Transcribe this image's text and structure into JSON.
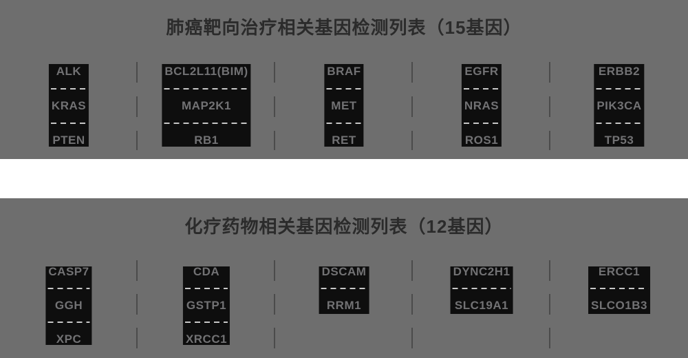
{
  "colors": {
    "page_bg": "#ffffff",
    "panel_bg": "#6e6e6e",
    "block_bg": "#0e0e0e",
    "gene_text": "#727274",
    "title_text": "#2b2b2b",
    "row_divider_dash": "#c8c8c8",
    "column_divider_dash": "#4b4b4b"
  },
  "panels": [
    {
      "title": "肺癌靶向治疗相关基因检测列表（15基因）",
      "gene_count": 15,
      "columns": [
        {
          "genes": [
            "ALK",
            "KRAS",
            "PTEN"
          ]
        },
        {
          "genes": [
            "BCL2L11(BIM)",
            "MAP2K1",
            "RB1"
          ]
        },
        {
          "genes": [
            "BRAF",
            "MET",
            "RET"
          ]
        },
        {
          "genes": [
            "EGFR",
            "NRAS",
            "ROS1"
          ]
        },
        {
          "genes": [
            "ERBB2",
            "PIK3CA",
            "TP53"
          ]
        }
      ]
    },
    {
      "title": "化疗药物相关基因检测列表（12基因）",
      "gene_count": 12,
      "columns": [
        {
          "genes": [
            "CASP7",
            "GGH",
            "XPC"
          ]
        },
        {
          "genes": [
            "CDA",
            "GSTP1",
            "XRCC1"
          ]
        },
        {
          "genes": [
            "DSCAM",
            "RRM1"
          ]
        },
        {
          "genes": [
            "DYNC2H1",
            "SLC19A1"
          ]
        },
        {
          "genes": [
            "ERCC1",
            "SLCO1B3"
          ]
        }
      ]
    }
  ]
}
